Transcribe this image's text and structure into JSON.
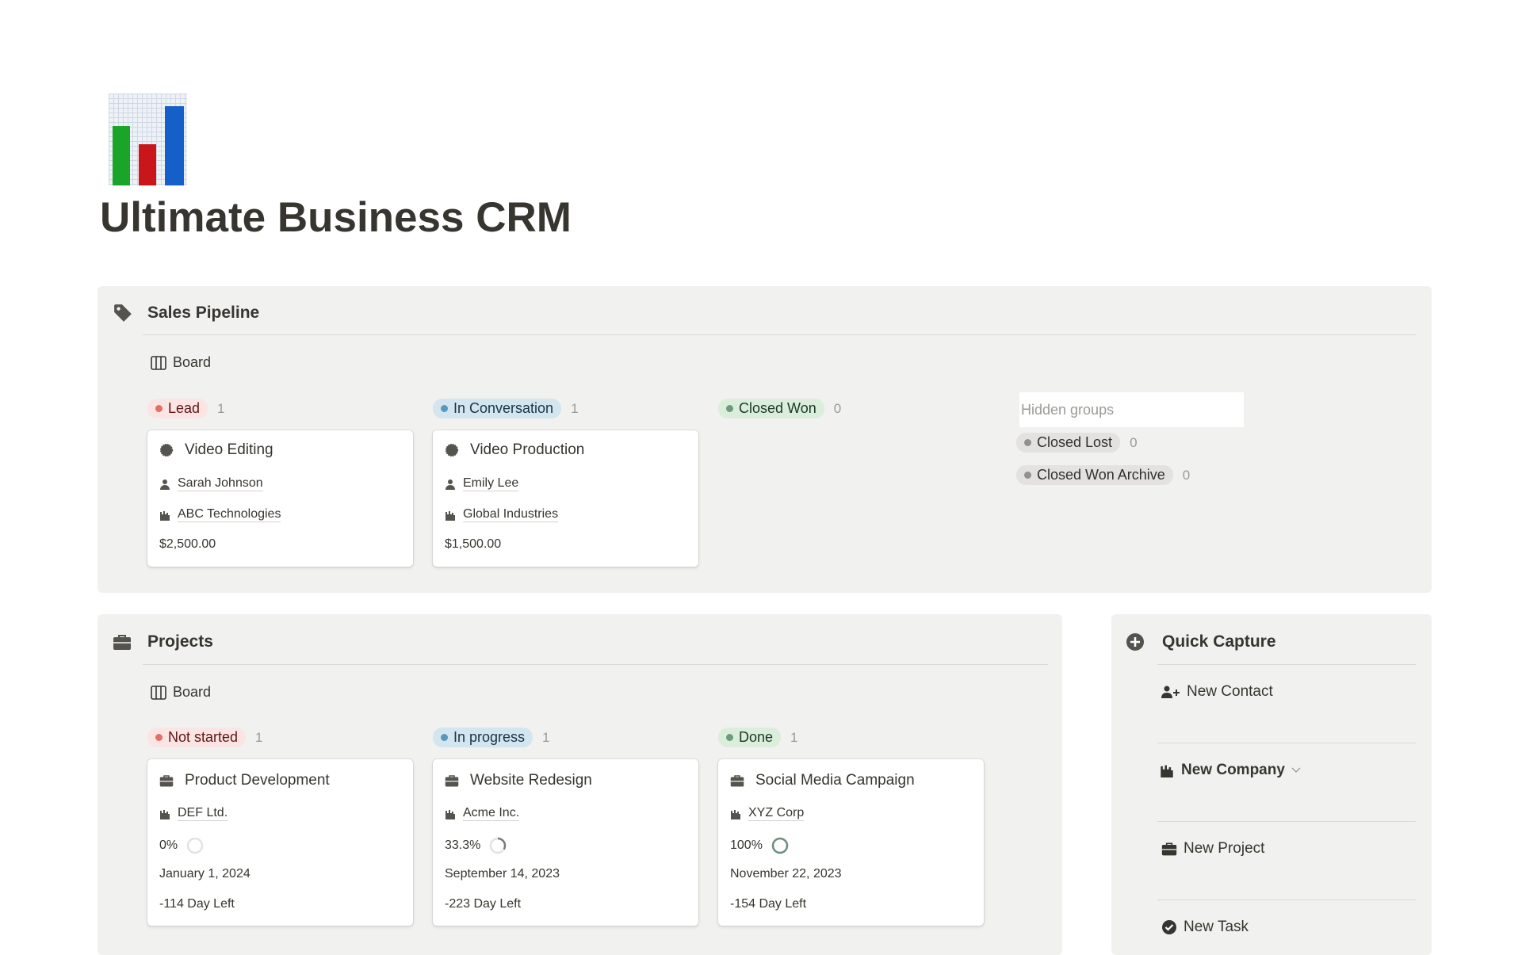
{
  "page": {
    "title": "Ultimate Business CRM",
    "icon": "bar-chart-icon"
  },
  "sales": {
    "title": "Sales Pipeline",
    "icon": "tag-icon",
    "view": "Board",
    "groups": [
      {
        "label": "Lead",
        "count": "1",
        "color": "#e16f64",
        "bg": "#fbe4e4"
      },
      {
        "label": "In Conversation",
        "count": "1",
        "color": "#5b97bd",
        "bg": "#d3e5ef"
      },
      {
        "label": "Closed Won",
        "count": "0",
        "color": "#6c9b7d",
        "bg": "#dbeddb"
      }
    ],
    "cards": [
      {
        "title": "Video Editing",
        "contact": "Sarah Johnson",
        "company": "ABC Technologies",
        "amount": "$2,500.00"
      },
      {
        "title": "Video Production",
        "contact": "Emily Lee",
        "company": "Global Industries",
        "amount": "$1,500.00"
      }
    ],
    "hidden": {
      "label": "Hidden groups",
      "groups": [
        {
          "label": "Closed Lost",
          "count": "0"
        },
        {
          "label": "Closed Won Archive",
          "count": "0"
        }
      ]
    }
  },
  "projects": {
    "title": "Projects",
    "icon": "briefcase-icon",
    "view": "Board",
    "groups": [
      {
        "label": "Not started",
        "count": "1",
        "color": "#e16f64",
        "bg": "#fbe4e4"
      },
      {
        "label": "In progress",
        "count": "1",
        "color": "#5b97bd",
        "bg": "#d3e5ef"
      },
      {
        "label": "Done",
        "count": "1",
        "color": "#6c9b7d",
        "bg": "#dbeddb"
      }
    ],
    "cards": [
      {
        "title": "Product Development",
        "company": "DEF Ltd.",
        "progress": "0%",
        "progress_value": 0,
        "date": "January 1, 2024",
        "left": "-114 Day Left"
      },
      {
        "title": "Website Redesign",
        "company": "Acme Inc.",
        "progress": "33.3%",
        "progress_value": 33.3,
        "date": "September 14, 2023",
        "left": "-223 Day Left"
      },
      {
        "title": "Social Media Campaign",
        "company": "XYZ Corp",
        "progress": "100%",
        "progress_value": 100,
        "date": "November 22, 2023",
        "left": "-154 Day Left"
      }
    ]
  },
  "quick": {
    "title": "Quick Capture",
    "icon": "plus-circle-icon",
    "items": [
      "New Contact",
      "New Company",
      "New Project",
      "New Task"
    ]
  }
}
